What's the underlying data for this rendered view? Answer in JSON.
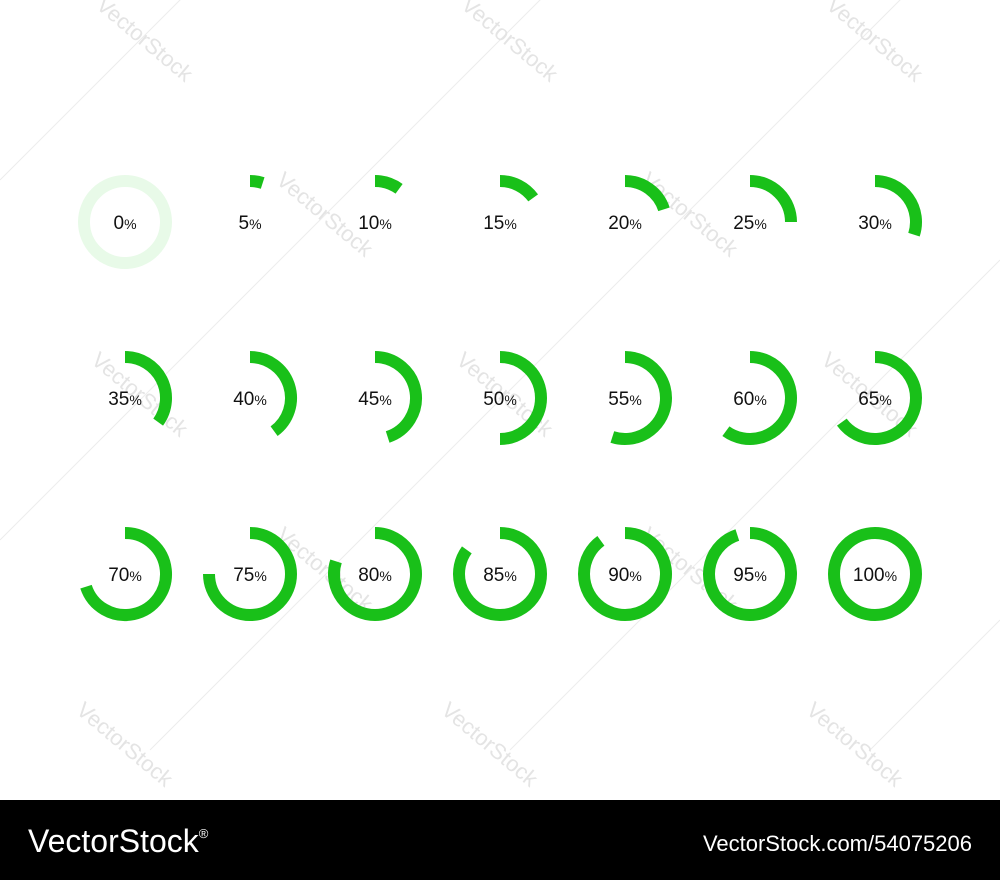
{
  "rings": [
    0,
    5,
    10,
    15,
    20,
    25,
    30,
    35,
    40,
    45,
    50,
    55,
    60,
    65,
    70,
    75,
    80,
    85,
    90,
    95,
    100
  ],
  "unit": "%",
  "max": 100,
  "color": "#19c019",
  "empty_color": "#e8fae8",
  "watermark": "VectorStock",
  "footer": {
    "brand": "VectorStock",
    "mark": "®",
    "id": "VectorStock.com/54075206"
  }
}
